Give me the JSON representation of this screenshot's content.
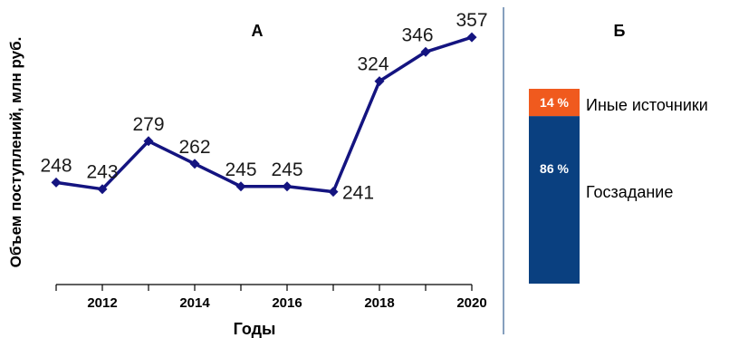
{
  "chart_data": [
    {
      "type": "line",
      "title": "А",
      "xlabel": "Годы",
      "ylabel": "Объем поступлений, млн руб.",
      "x": [
        2011,
        2012,
        2013,
        2014,
        2015,
        2016,
        2017,
        2018,
        2019,
        2020
      ],
      "x_tick_labels": [
        "2012",
        "2014",
        "2016",
        "2018",
        "2020"
      ],
      "x_tick_values": [
        2012,
        2014,
        2016,
        2018,
        2020
      ],
      "series": [
        {
          "values": [
            248,
            243,
            279,
            262,
            245,
            245,
            241,
            324,
            346,
            357
          ]
        }
      ],
      "data_labels": [
        "248",
        "243",
        "279",
        "262",
        "245",
        "245",
        "241",
        "324",
        "346",
        "357"
      ],
      "ylim": [
        170,
        370
      ],
      "grid": false,
      "color": "#141480"
    },
    {
      "type": "bar",
      "stacked": true,
      "title": "Б",
      "segments": [
        {
          "name": "Госзадание",
          "value": 86,
          "label": "86 %",
          "color": "#0a4080"
        },
        {
          "name": "Иные источники",
          "value": 14,
          "label": "14 %",
          "color": "#f05a1e"
        }
      ]
    }
  ]
}
